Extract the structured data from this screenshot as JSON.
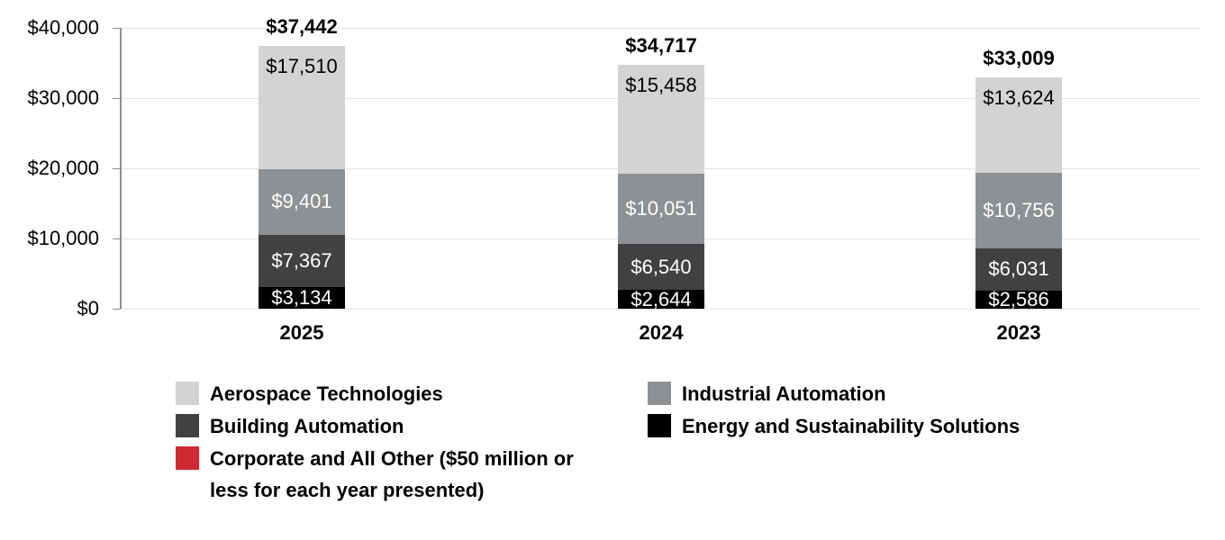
{
  "chart_data": {
    "type": "bar",
    "stacked": true,
    "title": "",
    "xlabel": "",
    "ylabel": "",
    "categories": [
      "2025",
      "2024",
      "2023"
    ],
    "series": [
      {
        "name": "Energy and Sustainability Solutions",
        "color": "#000000",
        "label_color": "#ffffff",
        "label_align": "center",
        "values": [
          3134,
          2644,
          2586
        ]
      },
      {
        "name": "Building Automation",
        "color": "#414143",
        "label_color": "#ffffff",
        "label_align": "center",
        "values": [
          7367,
          6540,
          6031
        ]
      },
      {
        "name": "Industrial Automation",
        "color": "#8e9193",
        "label_color": "#ffffff",
        "label_align": "center",
        "values": [
          9401,
          10051,
          10756
        ]
      },
      {
        "name": "Aerospace Technologies",
        "color": "#d3d3d1",
        "label_color": "#000000",
        "label_align": "top",
        "values": [
          17510,
          15458,
          13624
        ]
      }
    ],
    "totals": [
      37442,
      34717,
      33009
    ],
    "ylim": [
      0,
      40000
    ],
    "yticks": [
      0,
      10000,
      20000,
      30000,
      40000
    ],
    "ytick_labels": [
      "$0",
      "$10,000",
      "$20,000",
      "$30,000",
      "$40,000"
    ],
    "grid": true,
    "value_prefix": "$",
    "legend_position": "bottom"
  },
  "legend": {
    "items": [
      {
        "label": "Aerospace Technologies",
        "color": "#d3d3d1"
      },
      {
        "label": "Industrial Automation",
        "color": "#8e9193"
      },
      {
        "label": "Building Automation",
        "color": "#414143"
      },
      {
        "label": "Energy and Sustainability Solutions",
        "color": "#000000"
      },
      {
        "label": "Corporate and All Other ($50 million or less for each year presented)",
        "color": "#cd2a33"
      }
    ]
  }
}
